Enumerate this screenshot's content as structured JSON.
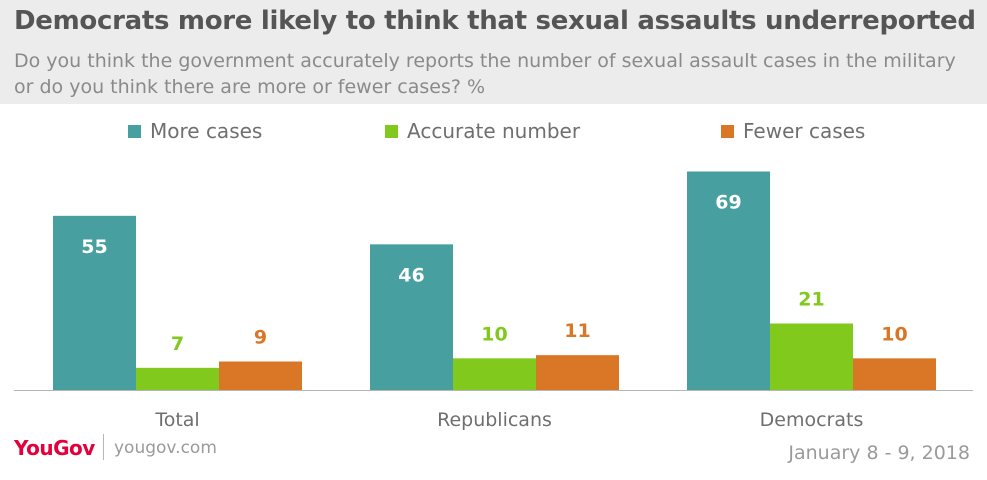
{
  "header": {
    "title": "Democrats more likely to think that sexual assaults underreported",
    "subtitle": "Do you think the government accurately reports the number of sexual assault cases in the military or do you think there are more or fewer cases? %"
  },
  "footer": {
    "brand": "YouGov",
    "url": "yougov.com",
    "date": "January 8 - 9, 2018"
  },
  "colors": {
    "more_cases": "#489f9f",
    "accurate_number": "#82c91e",
    "fewer_cases": "#d97727",
    "header_bg": "#ececec",
    "brand": "#e4003b"
  },
  "chart_data": {
    "type": "bar",
    "categories": [
      "Total",
      "Republicans",
      "Democrats"
    ],
    "series": [
      {
        "name": "More cases",
        "values": [
          55,
          46,
          69
        ]
      },
      {
        "name": "Accurate number",
        "values": [
          7,
          10,
          21
        ]
      },
      {
        "name": "Fewer cases",
        "values": [
          9,
          11,
          10
        ]
      }
    ],
    "ylim": [
      0,
      72
    ],
    "legend": "top",
    "grid": false,
    "data_labels": true
  }
}
